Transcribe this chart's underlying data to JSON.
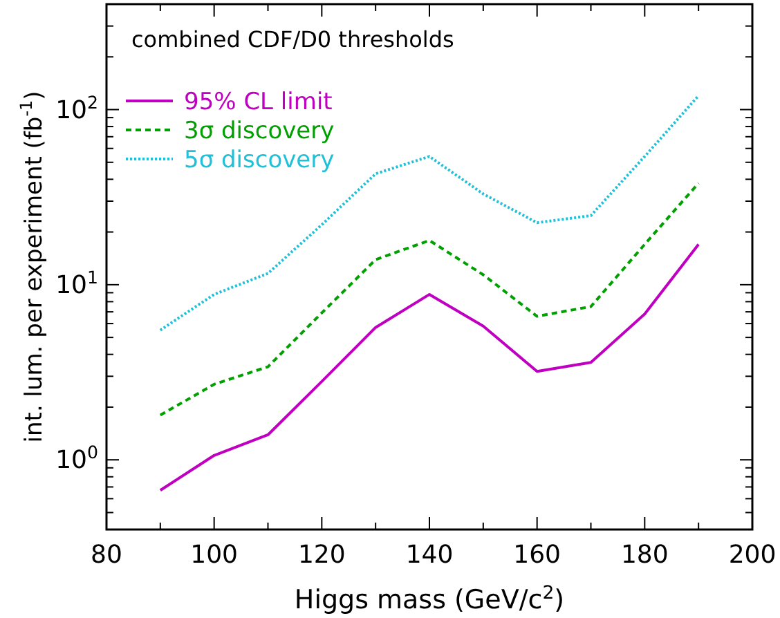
{
  "chart_data": {
    "type": "line",
    "title": "combined CDF/D0 thresholds",
    "xlabel": "Higgs mass (GeV/c$^{2}$)",
    "ylabel": "int. lum. per experiment (fb$^{-1}$)",
    "log": "y",
    "legend": "top left",
    "grid": false,
    "marker": "none",
    "x": [
      90,
      100,
      110,
      120,
      130,
      140,
      150,
      160,
      170,
      180,
      190
    ],
    "xlim": [
      80,
      200
    ],
    "xticks": [
      80,
      {
        "value": 90,
        "label": null
      },
      100,
      {
        "value": 110,
        "label": null
      },
      120,
      {
        "value": 130,
        "label": null
      },
      140,
      {
        "value": 150,
        "label": null
      },
      160,
      {
        "value": 170,
        "label": null
      },
      180,
      {
        "value": 190,
        "label": null
      },
      200
    ],
    "ylim": [
      0.4,
      400
    ],
    "yticks": [
      {
        "value": 0.4,
        "label": null
      },
      {
        "value": 0.5,
        "label": null
      },
      {
        "value": 0.6,
        "label": null
      },
      {
        "value": 0.7,
        "label": null
      },
      {
        "value": 0.8,
        "label": null
      },
      {
        "value": 0.9,
        "label": null
      },
      {
        "value": 1,
        "label": "10$^{0}$"
      },
      {
        "value": 2,
        "label": null
      },
      {
        "value": 3,
        "label": null
      },
      {
        "value": 4,
        "label": null
      },
      {
        "value": 5,
        "label": null
      },
      {
        "value": 6,
        "label": null
      },
      {
        "value": 7,
        "label": null
      },
      {
        "value": 8,
        "label": null
      },
      {
        "value": 9,
        "label": null
      },
      {
        "value": 10,
        "label": "10$^{1}$"
      },
      {
        "value": 20,
        "label": null
      },
      {
        "value": 30,
        "label": null
      },
      {
        "value": 40,
        "label": null
      },
      {
        "value": 50,
        "label": null
      },
      {
        "value": 60,
        "label": null
      },
      {
        "value": 70,
        "label": null
      },
      {
        "value": 80,
        "label": null
      },
      {
        "value": 90,
        "label": null
      },
      {
        "value": 100,
        "label": "10$^{2}$"
      },
      {
        "value": 200,
        "label": null
      },
      {
        "value": 300,
        "label": null
      },
      {
        "value": 400,
        "label": null
      }
    ],
    "series": [
      {
        "name": "95% CL limit",
        "color": "#c000c0",
        "line_style": "solid",
        "values": [
          0.67,
          1.06,
          1.39,
          2.8,
          5.7,
          8.8,
          5.8,
          3.2,
          3.6,
          6.8,
          17
        ]
      },
      {
        "name": "3σ discovery",
        "color": "#00a000",
        "line_style": "dashed",
        "values": [
          1.8,
          2.7,
          3.4,
          6.9,
          13.9,
          17.9,
          11.4,
          6.6,
          7.5,
          17,
          38
        ]
      },
      {
        "name": "5σ discovery",
        "color": "#20c0d8",
        "line_style": "dotted",
        "values": [
          5.5,
          8.8,
          11.6,
          22,
          43,
          54,
          33,
          22.6,
          24.8,
          54,
          120
        ]
      }
    ]
  }
}
